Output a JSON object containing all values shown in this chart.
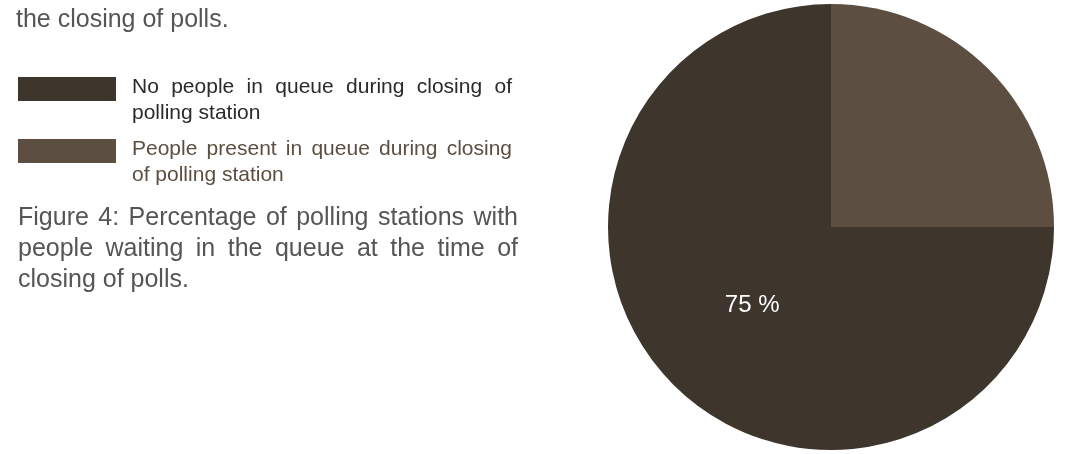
{
  "chart_data": {
    "type": "pie",
    "categories": [
      "No people in queue during closing of polling station",
      "People present in queue during closing of polling station"
    ],
    "values": [
      75,
      25
    ],
    "colors": [
      "#3e362c",
      "#5c4e40"
    ],
    "value_labels": [
      "75 %",
      null
    ],
    "legend": "left",
    "annotations": [
      "the closing of polls.",
      "Figure 4: Percentage of polling stations with people waiting in the queue at the time of closing of polls."
    ]
  }
}
